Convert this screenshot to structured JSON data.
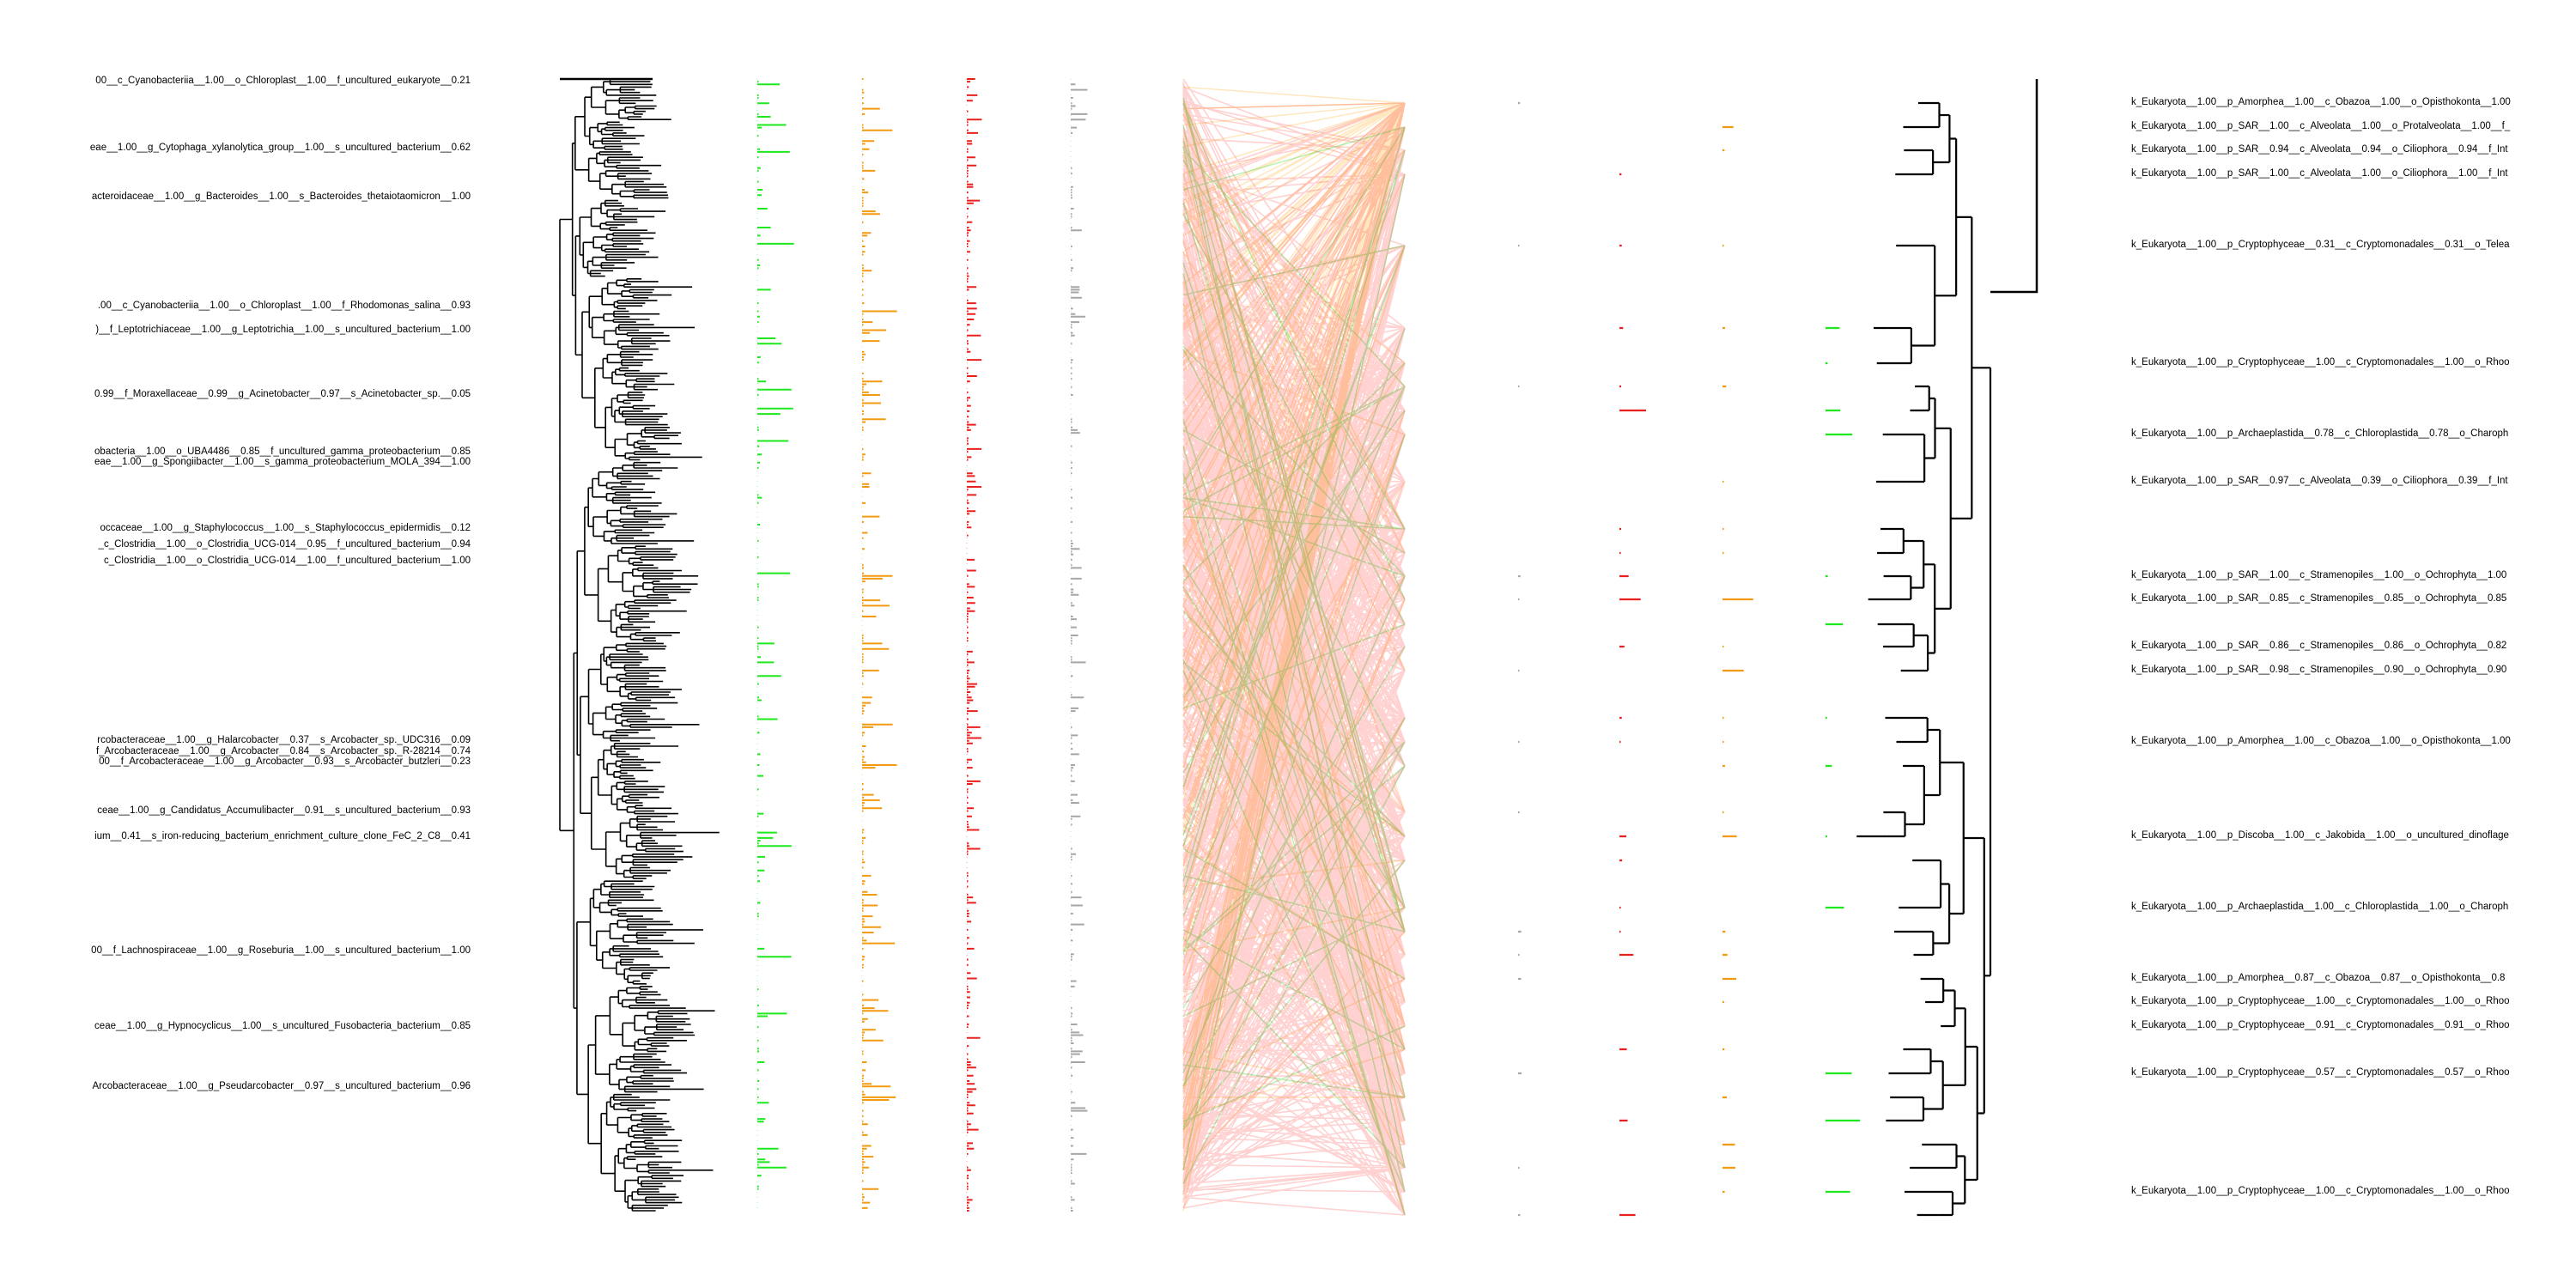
{
  "colors": {
    "background": "#ffffff",
    "tree": "#000000",
    "green": "#1ee81e",
    "orange": "#f39a10",
    "red": "#e8211f",
    "gray": "#a6a6a6",
    "link_red": "#ff0000",
    "link_orange": "#ffa500",
    "link_green": "#33dd33"
  },
  "left_labels": [
    "00__c_Cyanobacteriia__1.00__o_Chloroplast__1.00__f_uncultured_eukaryote__0.21",
    "eae__1.00__g_Cytophaga_xylanolytica_group__1.00__s_uncultured_bacterium__0.62",
    "acteroidaceae__1.00__g_Bacteroides__1.00__s_Bacteroides_thetaiotaomicron__1.00",
    ".00__c_Cyanobacteriia__1.00__o_Chloroplast__1.00__f_Rhodomonas_salina__0.93",
    ")__f_Leptotrichiaceae__1.00__g_Leptotrichia__1.00__s_uncultured_bacterium__1.00",
    "0.99__f_Moraxellaceae__0.99__g_Acinetobacter__0.97__s_Acinetobacter_sp.__0.05",
    "obacteria__1.00__o_UBA4486__0.85__f_uncultured_gamma_proteobacterium__0.85",
    "eae__1.00__g_Spongiibacter__1.00__s_gamma_proteobacterium_MOLA_394__1.00",
    "occaceae__1.00__g_Staphylococcus__1.00__s_Staphylococcus_epidermidis__0.12",
    "_c_Clostridia__1.00__o_Clostridia_UCG-014__0.95__f_uncultured_bacterium__0.94",
    "c_Clostridia__1.00__o_Clostridia_UCG-014__1.00__f_uncultured_bacterium__1.00",
    "rcobacteraceae__1.00__g_Halarcobacter__0.37__s_Arcobacter_sp._UDC316__0.09",
    "f_Arcobacteraceae__1.00__g_Arcobacter__0.84__s_Arcobacter_sp._R-28214__0.74",
    "00__f_Arcobacteraceae__1.00__g_Arcobacter__0.93__s_Arcobacter_butzleri__0.23",
    "ceae__1.00__g_Candidatus_Accumulibacter__0.91__s_uncultured_bacterium__0.93",
    "ium__0.41__s_iron-reducing_bacterium_enrichment_culture_clone_FeC_2_C8__0.41",
    "00__f_Lachnospiraceae__1.00__g_Roseburia__1.00__s_uncultured_bacterium__1.00",
    "ceae__1.00__g_Hypnocyclicus__1.00__s_uncultured_Fusobacteria_bacterium__0.85",
    "Arcobacteraceae__1.00__g_Pseudarcobacter__0.97__s_uncultured_bacterium__0.96"
  ],
  "right_labels": [
    "k_Eukaryota__1.00__p_Amorphea__1.00__c_Obazoa__1.00__o_Opisthokonta__1.00",
    "k_Eukaryota__1.00__p_SAR__1.00__c_Alveolata__1.00__o_Protalveolata__1.00__f_",
    "k_Eukaryota__1.00__p_SAR__0.94__c_Alveolata__0.94__o_Ciliophora__0.94__f_Int",
    "k_Eukaryota__1.00__p_SAR__1.00__c_Alveolata__1.00__o_Ciliophora__1.00__f_Int",
    "k_Eukaryota__1.00__p_Cryptophyceae__0.31__c_Cryptomonadales__0.31__o_Telea",
    "k_Eukaryota__1.00__p_Cryptophyceae__1.00__c_Cryptomonadales__1.00__o_Rhoo",
    "k_Eukaryota__1.00__p_Archaeplastida__0.78__c_Chloroplastida__0.78__o_Charoph",
    "k_Eukaryota__1.00__p_SAR__0.97__c_Alveolata__0.39__o_Ciliophora__0.39__f_Int",
    "k_Eukaryota__1.00__p_SAR__1.00__c_Stramenopiles__1.00__o_Ochrophyta__1.00",
    "k_Eukaryota__1.00__p_SAR__0.85__c_Stramenopiles__0.85__o_Ochrophyta__0.85",
    "k_Eukaryota__1.00__p_SAR__0.86__c_Stramenopiles__0.86__o_Ochrophyta__0.82",
    "k_Eukaryota__1.00__p_SAR__0.98__c_Stramenopiles__0.90__o_Ochrophyta__0.90",
    "k_Eukaryota__1.00__p_Amorphea__1.00__c_Obazoa__1.00__o_Opisthokonta__1.00",
    "k_Eukaryota__1.00__p_Discoba__1.00__c_Jakobida__1.00__o_uncultured_dinoflage",
    "k_Eukaryota__1.00__p_Archaeplastida__1.00__c_Chloroplastida__1.00__o_Charoph",
    "k_Eukaryota__1.00__p_Amorphea__0.87__c_Obazoa__0.87__o_Opisthokonta__0.8",
    "k_Eukaryota__1.00__p_Cryptophyceae__1.00__c_Cryptomonadales__1.00__o_Rhoo",
    "k_Eukaryota__1.00__p_Cryptophyceae__0.91__c_Cryptomonadales__0.91__o_Rhoo",
    "k_Eukaryota__1.00__p_Cryptophyceae__0.57__c_Cryptomonadales__0.57__o_Rhoo",
    "k_Eukaryota__1.00__p_Cryptophyceae__1.00__c_Cryptomonadales__1.00__o_Rhoo"
  ]
}
